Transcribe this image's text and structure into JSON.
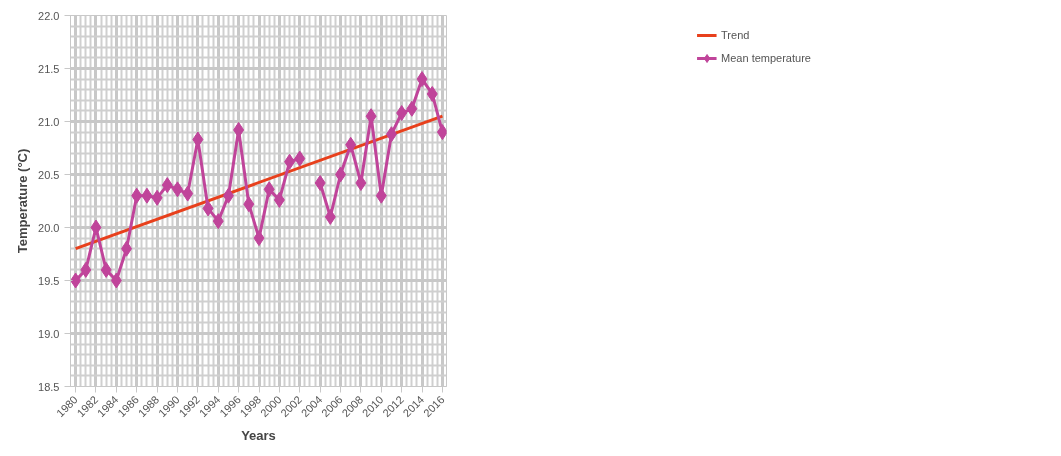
{
  "chart_data": {
    "type": "line",
    "xlabel": "Years",
    "ylabel": "Temperature (°C)",
    "xlim": [
      1979.5,
      2016.4
    ],
    "xticks": [
      1980,
      1982,
      1984,
      1986,
      1988,
      1990,
      1992,
      1994,
      1996,
      1998,
      2000,
      2002,
      2004,
      2006,
      2008,
      2010,
      2012,
      2014,
      2016
    ],
    "ylim": [
      18.5,
      22.0
    ],
    "yticks": [
      {
        "value": 18.5,
        "label": "18.5"
      },
      {
        "value": 19.0,
        "label": "19.0"
      },
      {
        "value": 19.5,
        "label": "19.5"
      },
      {
        "value": 20.0,
        "label": "20.0"
      },
      {
        "value": 20.5,
        "label": "20.5"
      },
      {
        "value": 21.0,
        "label": "21.0"
      },
      {
        "value": 21.5,
        "label": "21.5"
      },
      {
        "value": 22.0,
        "label": "22.0"
      }
    ],
    "grid": true,
    "legend": "top right",
    "marker": "diamond",
    "line_style": "solid",
    "x": [
      1980,
      1981,
      1982,
      1983,
      1984,
      1985,
      1986,
      1987,
      1988,
      1989,
      1990,
      1991,
      1992,
      1993,
      1994,
      1995,
      1996,
      1997,
      1998,
      1999,
      2000,
      2001,
      2002,
      2003,
      2004,
      2005,
      2006,
      2007,
      2008,
      2009,
      2010,
      2011,
      2012,
      2013,
      2014,
      2015,
      2016
    ],
    "series": [
      {
        "name": "Trend",
        "type": "line",
        "color": "#e8401c",
        "marker": "none",
        "x": [
          1980,
          2016
        ],
        "values": [
          19.8,
          21.05
        ]
      },
      {
        "name": "Mean temperature",
        "color": "#c0449a",
        "values": [
          19.5,
          19.6,
          20.0,
          19.6,
          19.5,
          19.8,
          20.3,
          20.3,
          20.28,
          20.4,
          20.36,
          20.32,
          20.83,
          20.18,
          20.06,
          20.3,
          20.92,
          20.22,
          19.9,
          20.36,
          20.26,
          20.62,
          20.65,
          null,
          20.42,
          20.1,
          20.5,
          20.78,
          20.42,
          21.05,
          20.3,
          20.88,
          21.08,
          21.12,
          21.4,
          21.26,
          20.9
        ]
      }
    ]
  }
}
